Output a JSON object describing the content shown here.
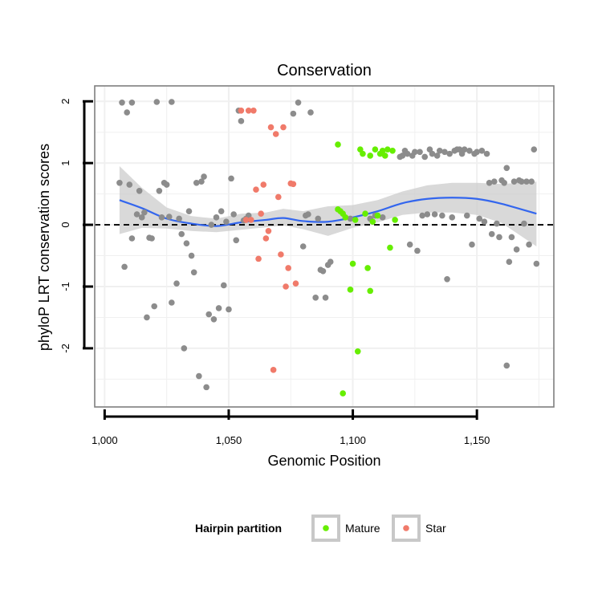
{
  "chart_data": {
    "type": "scatter",
    "title": "Conservation",
    "xlabel": "Genomic Position",
    "ylabel": "phyloP LRT conservation scores",
    "xlim": [
      996,
      1181
    ],
    "ylim": [
      -2.95,
      2.25
    ],
    "x_ticks": [
      1000,
      1050,
      1100,
      1150
    ],
    "x_tick_labels": [
      "1,000",
      "1,050",
      "1,100",
      "1,150"
    ],
    "y_ticks": [
      -2,
      -1,
      0,
      1,
      2
    ],
    "y_tick_labels": [
      "-2",
      "-1",
      "0",
      "1",
      "2"
    ],
    "reference_line": {
      "y": 0,
      "style": "dashed"
    },
    "grid": true,
    "legend": {
      "title": "Hairpin partition",
      "position": "bottom",
      "entries": [
        {
          "label": "Mature",
          "color": "#66ee00"
        },
        {
          "label": "Star",
          "color": "#f07a6a"
        }
      ]
    },
    "series": [
      {
        "color": "#8c8c8c",
        "points": [
          [
            1006,
            0.68
          ],
          [
            1007,
            1.98
          ],
          [
            1008,
            -0.68
          ],
          [
            1009,
            1.82
          ],
          [
            1010,
            0.65
          ],
          [
            1011,
            1.98
          ],
          [
            1011,
            -0.22
          ],
          [
            1013,
            0.17
          ],
          [
            1014,
            0.55
          ],
          [
            1015,
            0.12
          ],
          [
            1016,
            0.2
          ],
          [
            1017,
            -1.5
          ],
          [
            1018,
            -0.21
          ],
          [
            1019,
            -0.22
          ],
          [
            1020,
            -1.32
          ],
          [
            1021,
            1.99
          ],
          [
            1022,
            0.55
          ],
          [
            1023,
            0.12
          ],
          [
            1024,
            0.68
          ],
          [
            1025,
            0.65
          ],
          [
            1026,
            0.13
          ],
          [
            1027,
            -1.26
          ],
          [
            1027,
            1.99
          ],
          [
            1029,
            -0.95
          ],
          [
            1030,
            0.1
          ],
          [
            1031,
            -0.15
          ],
          [
            1032,
            -2.0
          ],
          [
            1033,
            -0.3
          ],
          [
            1034,
            0.22
          ],
          [
            1035,
            -0.5
          ],
          [
            1036,
            -0.77
          ],
          [
            1037,
            0.68
          ],
          [
            1038,
            -2.45
          ],
          [
            1039,
            0.7
          ],
          [
            1040,
            0.78
          ],
          [
            1041,
            -2.63
          ],
          [
            1042,
            -1.45
          ],
          [
            1043,
            0.0
          ],
          [
            1044,
            -1.53
          ],
          [
            1045,
            0.12
          ],
          [
            1046,
            -1.35
          ],
          [
            1047,
            0.22
          ],
          [
            1048,
            -0.98
          ],
          [
            1049,
            0.05
          ],
          [
            1050,
            -1.37
          ],
          [
            1051,
            0.75
          ],
          [
            1052,
            0.17
          ],
          [
            1053,
            -0.25
          ],
          [
            1054,
            1.85
          ],
          [
            1055,
            1.68
          ],
          [
            1056,
            0.07
          ],
          [
            1057,
            0.1
          ],
          [
            1058,
            0.15
          ],
          [
            1076,
            1.8
          ],
          [
            1078,
            1.98
          ],
          [
            1080,
            -0.35
          ],
          [
            1081,
            0.15
          ],
          [
            1082,
            0.17
          ],
          [
            1083,
            1.82
          ],
          [
            1085,
            -1.18
          ],
          [
            1086,
            0.1
          ],
          [
            1087,
            -0.73
          ],
          [
            1088,
            -0.75
          ],
          [
            1089,
            -1.18
          ],
          [
            1090,
            -0.65
          ],
          [
            1091,
            -0.6
          ],
          [
            1099,
            0.1
          ],
          [
            1107,
            0.1
          ],
          [
            1109,
            0.15
          ],
          [
            1112,
            0.12
          ],
          [
            1119,
            1.1
          ],
          [
            1120,
            1.12
          ],
          [
            1121,
            1.2
          ],
          [
            1122,
            1.15
          ],
          [
            1123,
            -0.32
          ],
          [
            1124,
            1.12
          ],
          [
            1125,
            1.18
          ],
          [
            1126,
            -0.42
          ],
          [
            1127,
            1.18
          ],
          [
            1128,
            0.15
          ],
          [
            1129,
            1.1
          ],
          [
            1130,
            0.17
          ],
          [
            1131,
            1.22
          ],
          [
            1132,
            1.15
          ],
          [
            1133,
            0.17
          ],
          [
            1134,
            1.12
          ],
          [
            1135,
            1.2
          ],
          [
            1136,
            0.15
          ],
          [
            1137,
            1.18
          ],
          [
            1138,
            -0.88
          ],
          [
            1139,
            1.15
          ],
          [
            1140,
            0.12
          ],
          [
            1141,
            1.2
          ],
          [
            1142,
            1.22
          ],
          [
            1143,
            1.22
          ],
          [
            1144,
            1.15
          ],
          [
            1145,
            1.22
          ],
          [
            1146,
            0.15
          ],
          [
            1147,
            1.2
          ],
          [
            1148,
            -0.32
          ],
          [
            1149,
            1.15
          ],
          [
            1150,
            1.18
          ],
          [
            1151,
            0.1
          ],
          [
            1152,
            1.2
          ],
          [
            1153,
            0.05
          ],
          [
            1154,
            1.15
          ],
          [
            1155,
            0.68
          ],
          [
            1156,
            -0.15
          ],
          [
            1157,
            0.7
          ],
          [
            1158,
            0.02
          ],
          [
            1159,
            -0.2
          ],
          [
            1160,
            0.72
          ],
          [
            1161,
            0.68
          ],
          [
            1162,
            -2.28
          ],
          [
            1162,
            0.92
          ],
          [
            1163,
            -0.6
          ],
          [
            1164,
            -0.2
          ],
          [
            1165,
            0.7
          ],
          [
            1166,
            -0.4
          ],
          [
            1167,
            0.72
          ],
          [
            1168,
            0.7
          ],
          [
            1169,
            0.02
          ],
          [
            1170,
            0.7
          ],
          [
            1171,
            -0.32
          ],
          [
            1172,
            0.7
          ],
          [
            1173,
            1.22
          ],
          [
            1174,
            -0.63
          ]
        ]
      },
      {
        "name": "Mature",
        "color": "#66ee00",
        "points": [
          [
            1094,
            1.3
          ],
          [
            1094,
            0.25
          ],
          [
            1095,
            0.22
          ],
          [
            1096,
            0.18
          ],
          [
            1096,
            -2.73
          ],
          [
            1097,
            0.12
          ],
          [
            1099,
            -1.05
          ],
          [
            1100,
            -0.63
          ],
          [
            1101,
            0.08
          ],
          [
            1102,
            -2.05
          ],
          [
            1103,
            1.22
          ],
          [
            1104,
            1.15
          ],
          [
            1105,
            0.18
          ],
          [
            1106,
            -0.7
          ],
          [
            1107,
            1.12
          ],
          [
            1107,
            -1.07
          ],
          [
            1108,
            0.05
          ],
          [
            1109,
            1.22
          ],
          [
            1110,
            0.15
          ],
          [
            1111,
            1.15
          ],
          [
            1112,
            1.2
          ],
          [
            1113,
            1.12
          ],
          [
            1114,
            1.22
          ],
          [
            1115,
            -0.37
          ],
          [
            1116,
            1.2
          ],
          [
            1117,
            0.08
          ]
        ]
      },
      {
        "name": "Star",
        "color": "#f07a6a",
        "points": [
          [
            1055,
            1.85
          ],
          [
            1057,
            0.08
          ],
          [
            1058,
            1.85
          ],
          [
            1059,
            0.08
          ],
          [
            1060,
            1.85
          ],
          [
            1061,
            0.57
          ],
          [
            1062,
            -0.55
          ],
          [
            1063,
            0.18
          ],
          [
            1064,
            0.65
          ],
          [
            1065,
            -0.22
          ],
          [
            1066,
            -0.1
          ],
          [
            1067,
            1.58
          ],
          [
            1068,
            -2.35
          ],
          [
            1069,
            1.47
          ],
          [
            1070,
            0.45
          ],
          [
            1071,
            -0.48
          ],
          [
            1072,
            1.58
          ],
          [
            1073,
            -1.0
          ],
          [
            1074,
            -0.7
          ],
          [
            1075,
            0.67
          ],
          [
            1076,
            0.66
          ],
          [
            1077,
            -0.95
          ]
        ]
      }
    ],
    "smooth_curve": {
      "color": "#3366ee",
      "band_color": "#cccccc",
      "x": [
        1006,
        1015,
        1025,
        1035,
        1045,
        1055,
        1065,
        1072,
        1080,
        1090,
        1100,
        1110,
        1120,
        1130,
        1140,
        1150,
        1160,
        1174
      ],
      "y": [
        0.4,
        0.27,
        0.1,
        0.02,
        -0.02,
        0.04,
        0.08,
        0.11,
        0.06,
        0.05,
        0.12,
        0.22,
        0.35,
        0.42,
        0.44,
        0.42,
        0.34,
        0.18
      ],
      "lower": [
        -0.15,
        -0.05,
        -0.06,
        -0.1,
        -0.12,
        -0.08,
        -0.04,
        -0.01,
        -0.07,
        -0.18,
        -0.05,
        0.04,
        0.16,
        0.2,
        0.2,
        0.16,
        0.03,
        -0.35
      ],
      "upper": [
        0.95,
        0.6,
        0.28,
        0.14,
        0.1,
        0.18,
        0.2,
        0.26,
        0.22,
        0.3,
        0.32,
        0.4,
        0.54,
        0.64,
        0.68,
        0.68,
        0.66,
        0.7
      ]
    }
  }
}
